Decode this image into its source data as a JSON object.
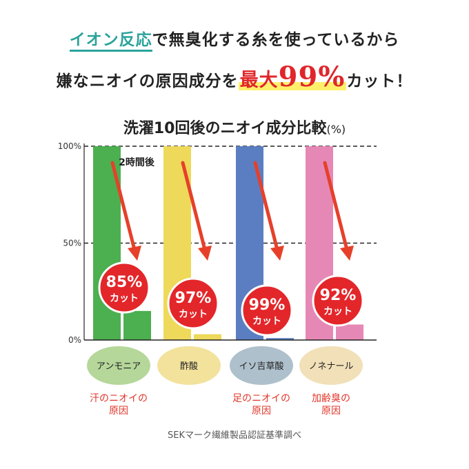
{
  "headline": {
    "line1_highlight": "イオン反応",
    "line1_rest": "で無臭化する糸を使っているから",
    "line2_pre": "嫌なニオイの原因成分を",
    "line2_red": "最大",
    "line2_big": "99%",
    "line2_post": "カット！"
  },
  "chart_data": {
    "type": "bar",
    "title": "洗濯10回後のニオイ成分比較",
    "title_unit": "(%)",
    "yticks": [
      "100%",
      "50%",
      "0%"
    ],
    "ylim": [
      0,
      100
    ],
    "grid": "dashed at 50% and 100%",
    "annotation": "2時間後",
    "categories": [
      "アンモニア",
      "酢酸",
      "イソ吉草酸",
      "ノネナール"
    ],
    "series": [
      {
        "values": [
          100,
          100,
          100,
          100
        ]
      },
      {
        "values": [
          15,
          3,
          1,
          8
        ]
      }
    ],
    "cut_percent": [
      "85%",
      "97%",
      "99%",
      "92%"
    ],
    "cut_label": "カット",
    "colors": {
      "before": [
        "#4caf50",
        "#eed95a",
        "#5b7ec2",
        "#e688b5"
      ],
      "circle_fill": [
        "#b5d79a",
        "#f2e29c",
        "#aec0cb",
        "#f1e0b8"
      ],
      "badge": "#e3262a",
      "arrow": "#e6402a",
      "reason_text": "#e0352a"
    },
    "reasons": [
      {
        "line1": "汗のニオイの",
        "line2": "原因"
      },
      {
        "line1": "",
        "line2": ""
      },
      {
        "line1": "足のニオイの",
        "line2": "原因"
      },
      {
        "line1": "加齢臭の",
        "line2": "原因"
      }
    ]
  },
  "source": "SEKマーク繊維製品認証基準調べ"
}
